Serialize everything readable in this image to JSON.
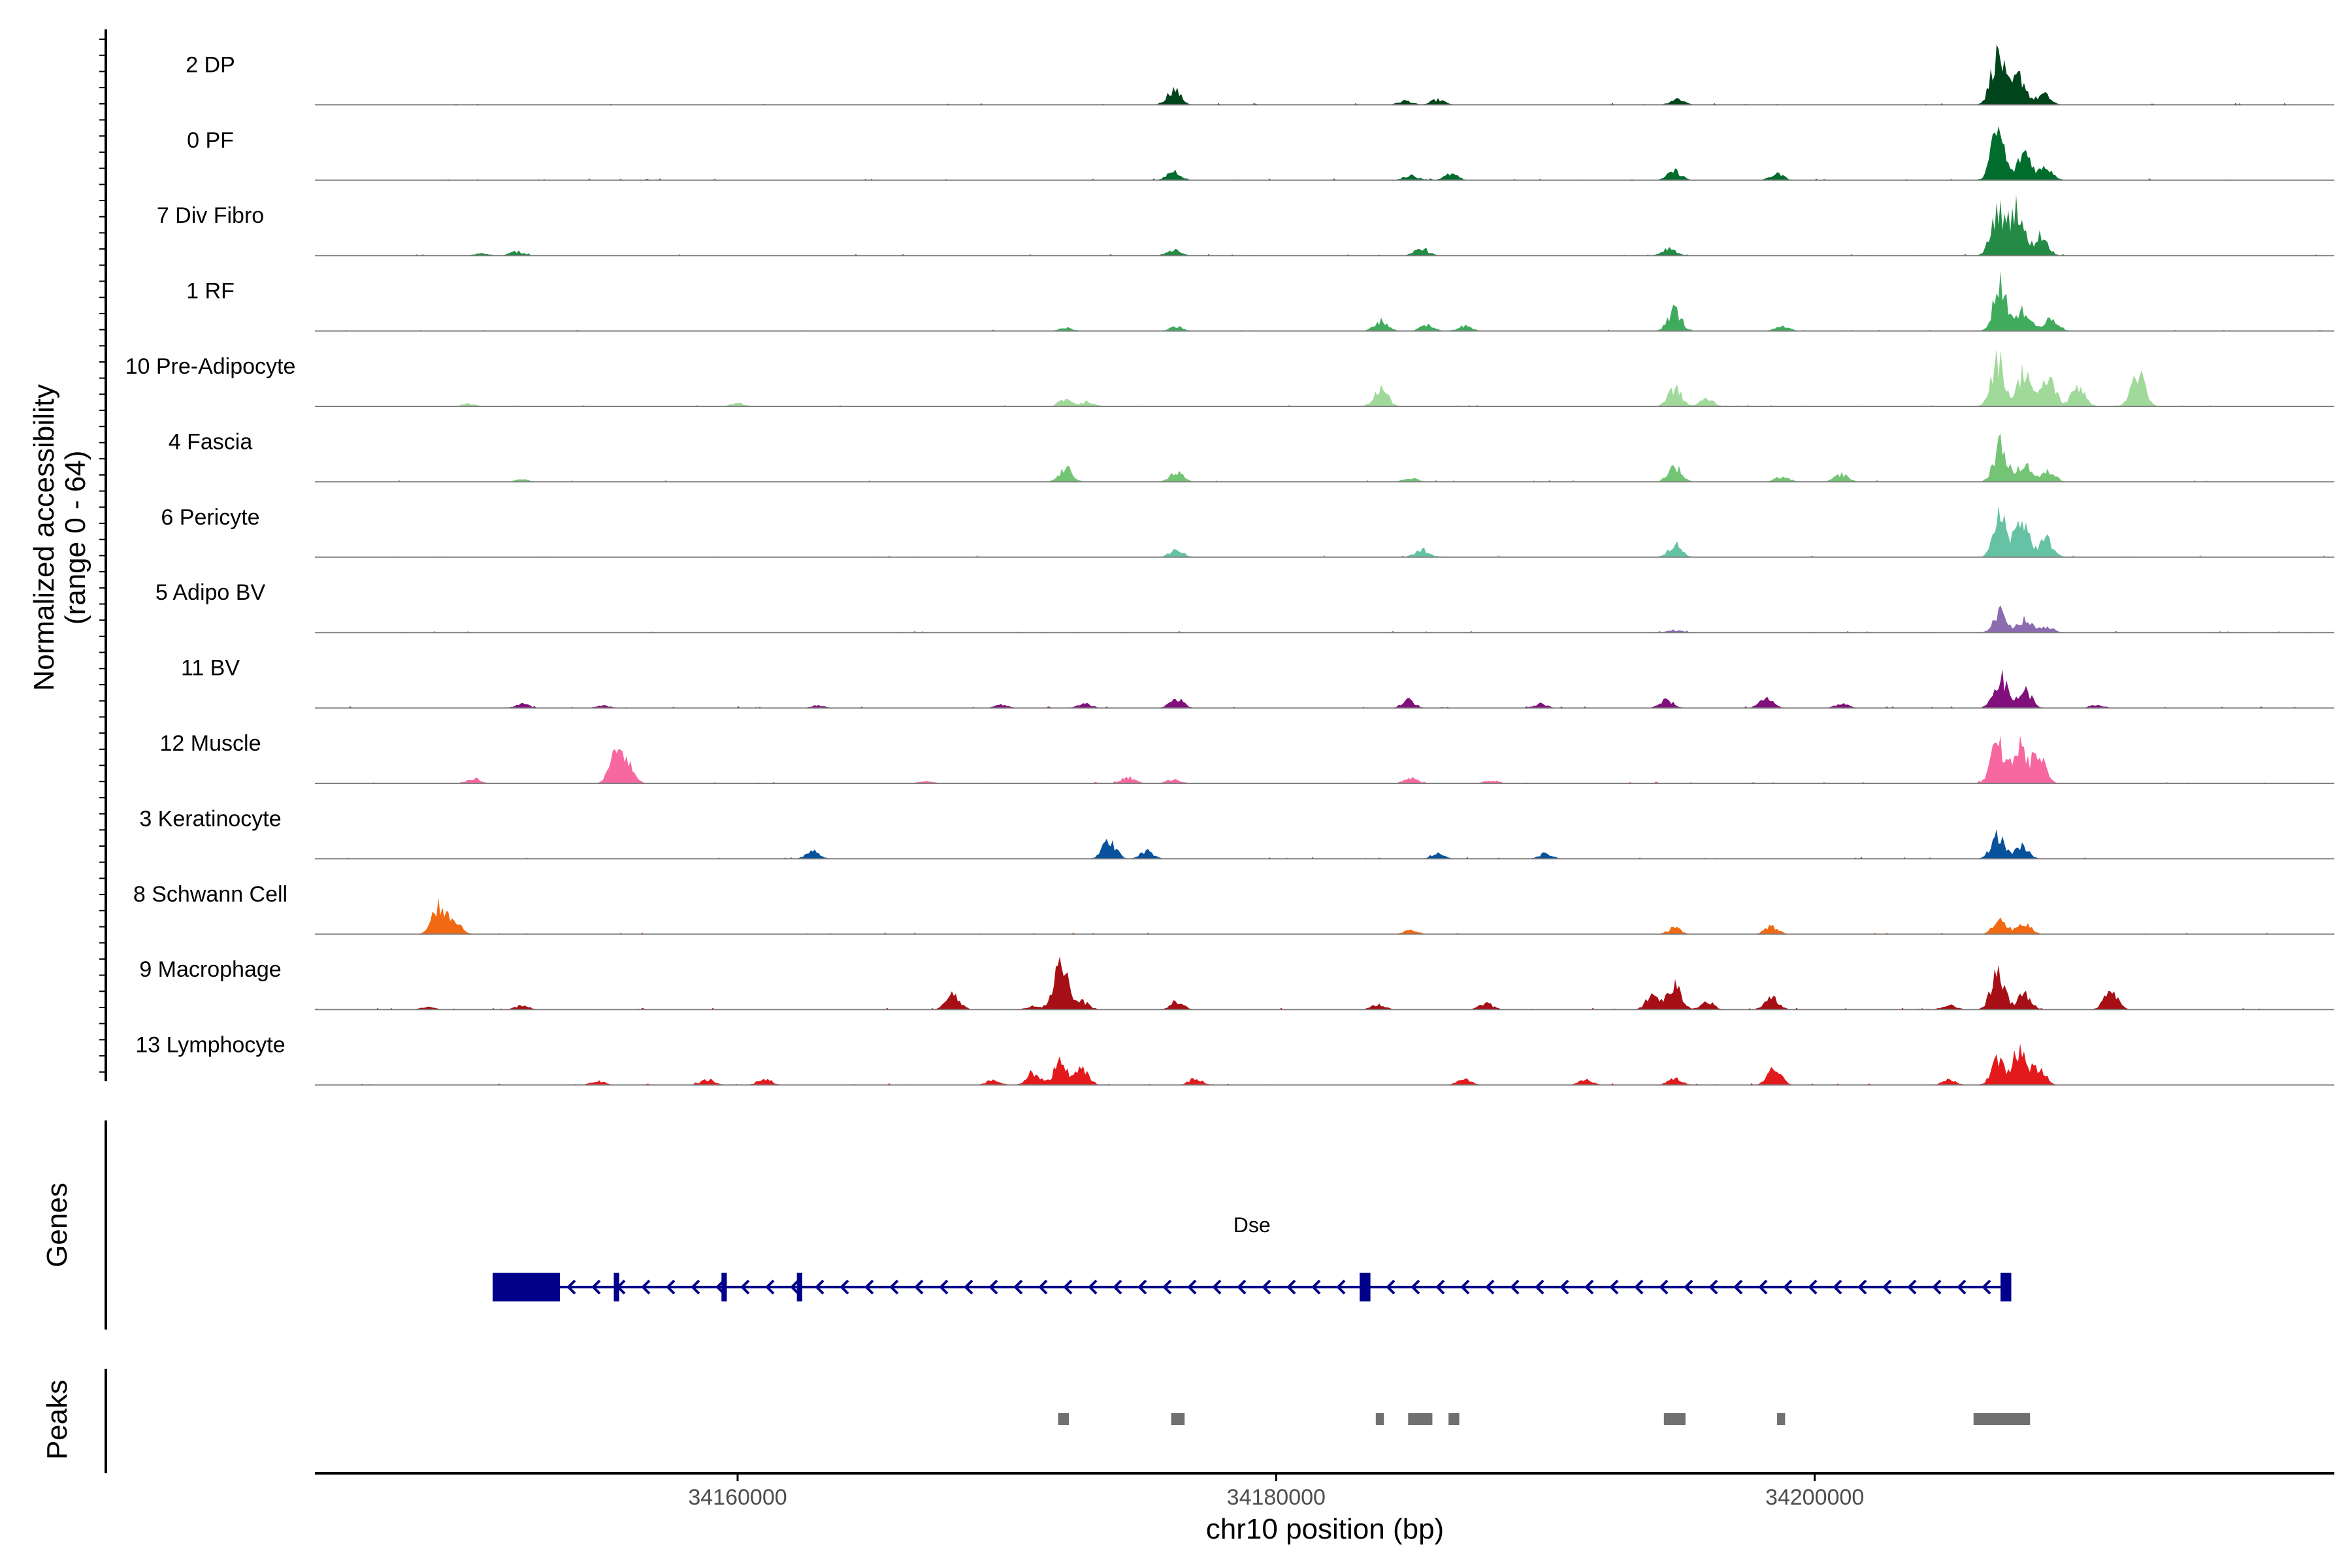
{
  "chart_data": {
    "type": "area",
    "coverage": {
      "ylabel": "Normalized accessibility\n(range 0 - 64)",
      "ylim": [
        0,
        64
      ],
      "tracks": [
        {
          "name": "2 DP",
          "color": "#00441b",
          "peaks": [
            [
              34176200,
              0.3
            ],
            [
              34184800,
              0.08
            ],
            [
              34186000,
              0.1
            ],
            [
              34194900,
              0.12
            ],
            [
              34206800,
              1.0
            ],
            [
              34207600,
              0.55
            ],
            [
              34208500,
              0.2
            ]
          ]
        },
        {
          "name": "0 PF",
          "color": "#006d2c",
          "peaks": [
            [
              34176200,
              0.18
            ],
            [
              34185000,
              0.1
            ],
            [
              34186500,
              0.12
            ],
            [
              34194800,
              0.18
            ],
            [
              34198600,
              0.12
            ],
            [
              34206800,
              0.95
            ],
            [
              34207800,
              0.55
            ],
            [
              34208600,
              0.25
            ]
          ]
        },
        {
          "name": "7 Div Fibro",
          "color": "#238b45",
          "peaks": [
            [
              34150500,
              0.05
            ],
            [
              34151800,
              0.08
            ],
            [
              34176200,
              0.12
            ],
            [
              34185400,
              0.15
            ],
            [
              34194600,
              0.15
            ],
            [
              34206800,
              0.85
            ],
            [
              34207500,
              0.95
            ],
            [
              34208400,
              0.4
            ]
          ]
        },
        {
          "name": "1 RF",
          "color": "#41ab5d",
          "peaks": [
            [
              34172200,
              0.06
            ],
            [
              34176300,
              0.08
            ],
            [
              34183900,
              0.2
            ],
            [
              34185600,
              0.12
            ],
            [
              34187000,
              0.1
            ],
            [
              34194800,
              0.4
            ],
            [
              34198800,
              0.1
            ],
            [
              34206900,
              0.95
            ],
            [
              34207800,
              0.4
            ],
            [
              34208800,
              0.25
            ]
          ]
        },
        {
          "name": "10 Pre-Adipocyte",
          "color": "#a1d99b",
          "peaks": [
            [
              34150000,
              0.05
            ],
            [
              34160000,
              0.06
            ],
            [
              34172200,
              0.15
            ],
            [
              34173000,
              0.08
            ],
            [
              34183900,
              0.35
            ],
            [
              34194800,
              0.35
            ],
            [
              34196000,
              0.15
            ],
            [
              34206800,
              0.9
            ],
            [
              34207800,
              0.7
            ],
            [
              34208700,
              0.55
            ],
            [
              34209800,
              0.4
            ],
            [
              34212000,
              0.65
            ]
          ]
        },
        {
          "name": "4 Fascia",
          "color": "#74c476",
          "peaks": [
            [
              34152000,
              0.05
            ],
            [
              34172200,
              0.25
            ],
            [
              34176300,
              0.18
            ],
            [
              34185000,
              0.08
            ],
            [
              34194800,
              0.3
            ],
            [
              34198800,
              0.1
            ],
            [
              34201000,
              0.15
            ],
            [
              34206900,
              0.7
            ],
            [
              34207800,
              0.35
            ],
            [
              34208700,
              0.2
            ]
          ]
        },
        {
          "name": "6 Pericyte",
          "color": "#66c2a4",
          "peaks": [
            [
              34176300,
              0.15
            ],
            [
              34185400,
              0.15
            ],
            [
              34194800,
              0.25
            ],
            [
              34206900,
              0.8
            ],
            [
              34207700,
              0.75
            ],
            [
              34208600,
              0.35
            ]
          ]
        },
        {
          "name": "5 Adipo BV",
          "color": "#8c6bb1",
          "peaks": [
            [
              34194800,
              0.05
            ],
            [
              34206900,
              0.4
            ],
            [
              34207800,
              0.25
            ],
            [
              34208600,
              0.12
            ]
          ]
        },
        {
          "name": "11 BV",
          "color": "#810f7c",
          "peaks": [
            [
              34152000,
              0.08
            ],
            [
              34155000,
              0.05
            ],
            [
              34163000,
              0.05
            ],
            [
              34169800,
              0.06
            ],
            [
              34172900,
              0.08
            ],
            [
              34176300,
              0.18
            ],
            [
              34184900,
              0.15
            ],
            [
              34189800,
              0.08
            ],
            [
              34194500,
              0.15
            ],
            [
              34198200,
              0.18
            ],
            [
              34201000,
              0.08
            ],
            [
              34206900,
              0.6
            ],
            [
              34207800,
              0.35
            ],
            [
              34210500,
              0.06
            ]
          ]
        },
        {
          "name": "12 Muscle",
          "color": "#f768a1",
          "peaks": [
            [
              34150200,
              0.1
            ],
            [
              34155500,
              0.6
            ],
            [
              34155900,
              0.3
            ],
            [
              34167000,
              0.05
            ],
            [
              34174500,
              0.12
            ],
            [
              34176200,
              0.08
            ],
            [
              34185000,
              0.1
            ],
            [
              34188000,
              0.06
            ],
            [
              34206800,
              0.75
            ],
            [
              34207600,
              0.7
            ],
            [
              34208300,
              0.55
            ]
          ]
        },
        {
          "name": "3 Keratinocyte",
          "color": "#08519c",
          "peaks": [
            [
              34162800,
              0.15
            ],
            [
              34173800,
              0.35
            ],
            [
              34175200,
              0.15
            ],
            [
              34186000,
              0.1
            ],
            [
              34190000,
              0.1
            ],
            [
              34206800,
              0.45
            ],
            [
              34207700,
              0.25
            ]
          ]
        },
        {
          "name": "8 Schwann Cell",
          "color": "#f16913",
          "peaks": [
            [
              34148900,
              0.55
            ],
            [
              34149500,
              0.25
            ],
            [
              34185000,
              0.08
            ],
            [
              34194800,
              0.12
            ],
            [
              34198400,
              0.15
            ],
            [
              34206900,
              0.3
            ],
            [
              34207800,
              0.2
            ]
          ]
        },
        {
          "name": "9 Macrophage",
          "color": "#a50f15",
          "peaks": [
            [
              34148500,
              0.05
            ],
            [
              34152000,
              0.08
            ],
            [
              34168000,
              0.3
            ],
            [
              34171000,
              0.08
            ],
            [
              34172000,
              1.0
            ],
            [
              34172800,
              0.15
            ],
            [
              34176300,
              0.15
            ],
            [
              34183800,
              0.1
            ],
            [
              34187800,
              0.12
            ],
            [
              34194000,
              0.28
            ],
            [
              34194800,
              0.45
            ],
            [
              34196000,
              0.15
            ],
            [
              34198400,
              0.25
            ],
            [
              34205000,
              0.1
            ],
            [
              34206800,
              0.7
            ],
            [
              34207800,
              0.3
            ],
            [
              34211000,
              0.35
            ]
          ]
        },
        {
          "name": "13 Lymphocyte",
          "color": "#e31a1c",
          "peaks": [
            [
              34154800,
              0.08
            ],
            [
              34158900,
              0.1
            ],
            [
              34161000,
              0.12
            ],
            [
              34169500,
              0.1
            ],
            [
              34171000,
              0.25
            ],
            [
              34172000,
              0.45
            ],
            [
              34172800,
              0.3
            ],
            [
              34177000,
              0.12
            ],
            [
              34187000,
              0.12
            ],
            [
              34191500,
              0.1
            ],
            [
              34194800,
              0.15
            ],
            [
              34198500,
              0.3
            ],
            [
              34205000,
              0.1
            ],
            [
              34206800,
              0.45
            ],
            [
              34207600,
              0.7
            ],
            [
              34208300,
              0.35
            ]
          ]
        }
      ]
    },
    "genes": {
      "ylabel": "Genes",
      "gene": "Dse",
      "color": "#00008b",
      "strand": "-",
      "start": 34150900,
      "end": 34207300,
      "exons": [
        [
          34150900,
          34153400
        ],
        [
          34155400,
          34155600
        ],
        [
          34159400,
          34159600
        ],
        [
          34162200,
          34162400
        ],
        [
          34183100,
          34183500
        ],
        [
          34206900,
          34207300
        ]
      ]
    },
    "peaks": {
      "ylabel": "Peaks",
      "color": "#707070",
      "regions": [
        [
          34171900,
          34172300
        ],
        [
          34176100,
          34176600
        ],
        [
          34183700,
          34184000
        ],
        [
          34184900,
          34185800
        ],
        [
          34186400,
          34186800
        ],
        [
          34194400,
          34195200
        ],
        [
          34198600,
          34198900
        ],
        [
          34205900,
          34208000
        ]
      ]
    },
    "xaxis": {
      "label": "chr10 position (bp)",
      "xlim": [
        34144300,
        34219300
      ],
      "ticks": [
        34160000,
        34180000,
        34200000
      ],
      "tick_labels": [
        "34160000",
        "34180000",
        "34200000"
      ]
    }
  }
}
